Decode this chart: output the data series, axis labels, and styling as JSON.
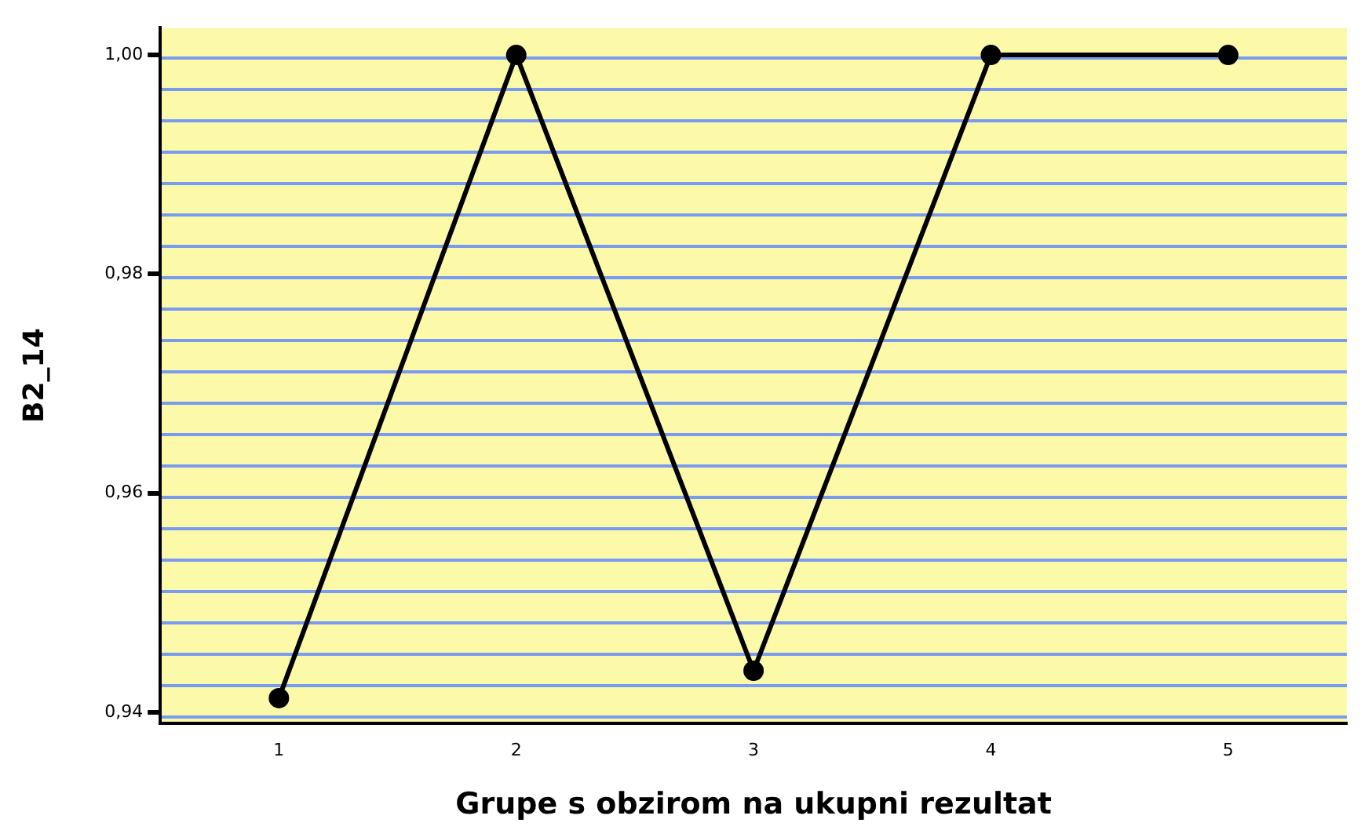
{
  "chart_data": {
    "type": "line",
    "xlabel": "Grupe s obzirom na ukupni rezultat",
    "ylabel": "B2_14",
    "categories": [
      "1",
      "2",
      "3",
      "4",
      "5"
    ],
    "series": [
      {
        "color": "#000000",
        "values": [
          0.9413,
          1.0,
          0.9438,
          1.0,
          1.0
        ]
      }
    ],
    "ylim": [
      0.939,
      1.0025
    ],
    "yticks": [
      {
        "value": 0.94,
        "label": "0,94"
      },
      {
        "value": 0.96,
        "label": "0,96"
      },
      {
        "value": 0.98,
        "label": "0,98"
      },
      {
        "value": 1.0,
        "label": "1,00"
      }
    ],
    "grid": false,
    "legend": false,
    "marker": "circle",
    "line_style": "solid"
  }
}
